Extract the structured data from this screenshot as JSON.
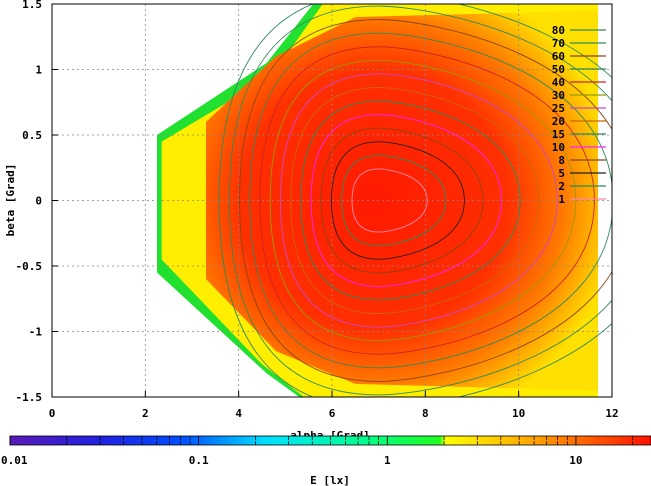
{
  "chart_data": {
    "type": "heatmap",
    "xlabel": "alpha [Grad]",
    "ylabel": "beta [Grad]",
    "xlim": [
      0,
      12
    ],
    "ylim": [
      1.5,
      -1.5
    ],
    "x_ticks": [
      "0",
      "2",
      "4",
      "6",
      "8",
      "10",
      "12"
    ],
    "y_ticks": [
      "-1.5",
      "-1",
      "-0.5",
      "0",
      "0.5",
      "1",
      "1.5"
    ],
    "grid": true,
    "contour_levels": [
      "80",
      "70",
      "60",
      "50",
      "40",
      "30",
      "25",
      "20",
      "15",
      "10",
      "8",
      "5",
      "2",
      "1"
    ],
    "contour_colors": [
      "#2e8b57",
      "#2e8b57",
      "#8b4513",
      "#2e8b57",
      "#cc2222",
      "#999900",
      "#cc44cc",
      "#cc6600",
      "#2e8b57",
      "#ff22ff",
      "#8b4513",
      "#222222",
      "#2e8b57",
      "#ff88aa"
    ],
    "colorbar": {
      "label": "E [lx]",
      "scale": "log",
      "range": [
        0.01,
        25
      ],
      "tick_labels": [
        "0.01",
        "0.1",
        "1",
        "10"
      ],
      "tick_values": [
        0.01,
        0.1,
        1,
        10
      ]
    },
    "peak": {
      "alpha": 7.0,
      "beta": 0.0
    },
    "region": {
      "alpha_min": 2.25,
      "alpha_max": 11.7,
      "beta_min": -1.5,
      "beta_max": 1.5
    }
  }
}
